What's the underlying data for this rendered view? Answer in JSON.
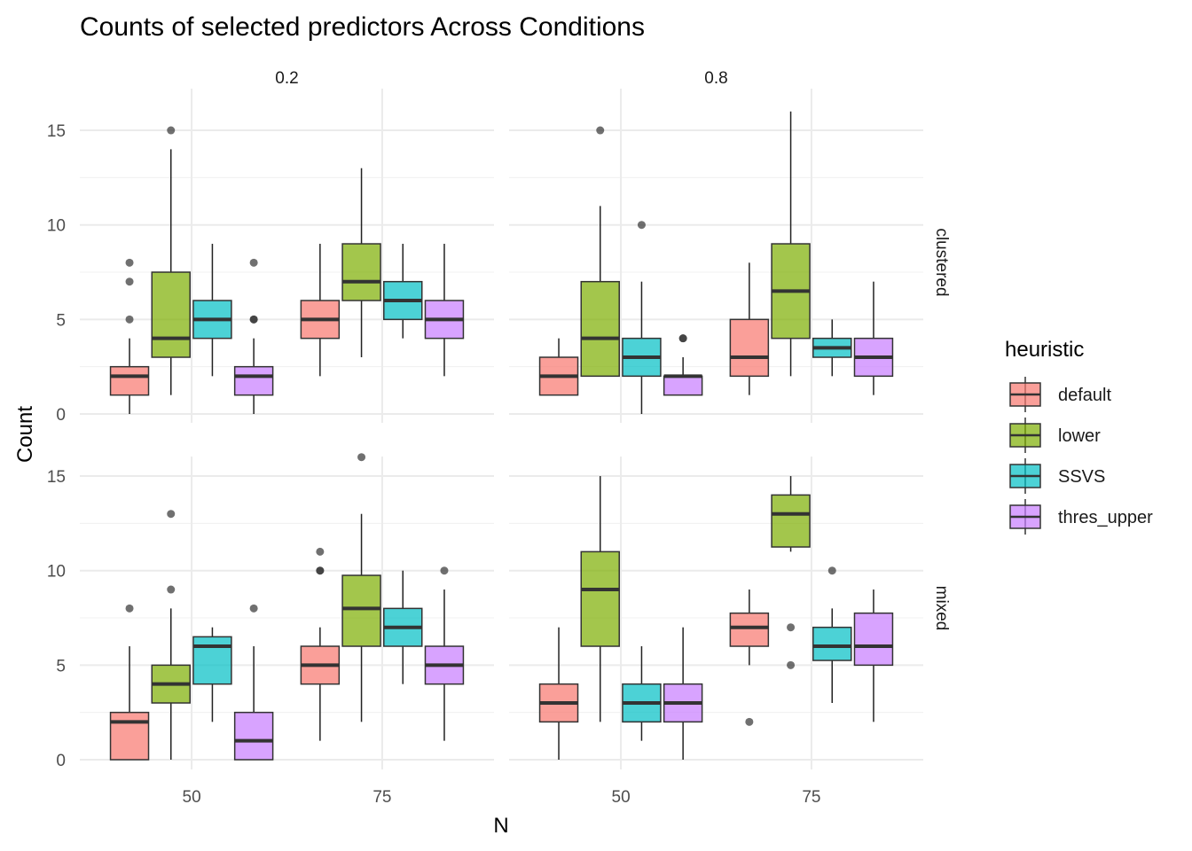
{
  "chart_data": {
    "type": "box",
    "title": "Counts of selected predictors Across Conditions",
    "xlabel": "N",
    "ylabel": "Count",
    "col_facets": [
      "0.2",
      "0.8"
    ],
    "row_facets": [
      "clustered",
      "mixed"
    ],
    "x_categories": [
      "50",
      "75"
    ],
    "y_ticks": [
      0,
      5,
      10,
      15
    ],
    "ylim": [
      -0.8,
      16.2
    ],
    "grid": true,
    "legend": {
      "title": "heuristic",
      "position": "right",
      "entries": [
        {
          "name": "default",
          "color": "#F8766D"
        },
        {
          "name": "lower",
          "color": "#7CAE00"
        },
        {
          "name": "SSVS",
          "color": "#00BFC4"
        },
        {
          "name": "thres_upper",
          "color": "#C77CFF"
        }
      ]
    },
    "panels": [
      {
        "col": "0.2",
        "row": "clustered",
        "boxes": [
          {
            "N": "50",
            "heuristic": "default",
            "lower_whisker": 0,
            "q1": 1,
            "median": 2,
            "q3": 2.5,
            "upper_whisker": 4,
            "outliers": [
              5,
              7,
              8
            ]
          },
          {
            "N": "50",
            "heuristic": "lower",
            "lower_whisker": 1,
            "q1": 3,
            "median": 4,
            "q3": 7.5,
            "upper_whisker": 14,
            "outliers": [
              15
            ]
          },
          {
            "N": "50",
            "heuristic": "SSVS",
            "lower_whisker": 2,
            "q1": 4,
            "median": 5,
            "q3": 6,
            "upper_whisker": 9,
            "outliers": []
          },
          {
            "N": "50",
            "heuristic": "thres_upper",
            "lower_whisker": 0,
            "q1": 1,
            "median": 2,
            "q3": 2.5,
            "upper_whisker": 4,
            "outliers": [
              5,
              5,
              8
            ]
          },
          {
            "N": "75",
            "heuristic": "default",
            "lower_whisker": 2,
            "q1": 4,
            "median": 5,
            "q3": 6,
            "upper_whisker": 9,
            "outliers": []
          },
          {
            "N": "75",
            "heuristic": "lower",
            "lower_whisker": 3,
            "q1": 6,
            "median": 7,
            "q3": 9,
            "upper_whisker": 13,
            "outliers": []
          },
          {
            "N": "75",
            "heuristic": "SSVS",
            "lower_whisker": 4,
            "q1": 5,
            "median": 6,
            "q3": 7,
            "upper_whisker": 9,
            "outliers": []
          },
          {
            "N": "75",
            "heuristic": "thres_upper",
            "lower_whisker": 2,
            "q1": 4,
            "median": 5,
            "q3": 6,
            "upper_whisker": 9,
            "outliers": []
          }
        ]
      },
      {
        "col": "0.8",
        "row": "clustered",
        "boxes": [
          {
            "N": "50",
            "heuristic": "default",
            "lower_whisker": 1,
            "q1": 1,
            "median": 2,
            "q3": 3,
            "upper_whisker": 4,
            "outliers": []
          },
          {
            "N": "50",
            "heuristic": "lower",
            "lower_whisker": 2,
            "q1": 2,
            "median": 4,
            "q3": 7,
            "upper_whisker": 11,
            "outliers": [
              15
            ]
          },
          {
            "N": "50",
            "heuristic": "SSVS",
            "lower_whisker": 0,
            "q1": 2,
            "median": 3,
            "q3": 4,
            "upper_whisker": 7,
            "outliers": [
              10
            ]
          },
          {
            "N": "50",
            "heuristic": "thres_upper",
            "lower_whisker": 1,
            "q1": 1,
            "median": 2,
            "q3": 2,
            "upper_whisker": 3,
            "outliers": [
              4,
              4
            ]
          },
          {
            "N": "75",
            "heuristic": "default",
            "lower_whisker": 1,
            "q1": 2,
            "median": 3,
            "q3": 5,
            "upper_whisker": 8,
            "outliers": []
          },
          {
            "N": "75",
            "heuristic": "lower",
            "lower_whisker": 2,
            "q1": 4,
            "median": 6.5,
            "q3": 9,
            "upper_whisker": 16,
            "outliers": []
          },
          {
            "N": "75",
            "heuristic": "SSVS",
            "lower_whisker": 2,
            "q1": 3,
            "median": 3.5,
            "q3": 4,
            "upper_whisker": 5,
            "outliers": []
          },
          {
            "N": "75",
            "heuristic": "thres_upper",
            "lower_whisker": 1,
            "q1": 2,
            "median": 3,
            "q3": 4,
            "upper_whisker": 7,
            "outliers": []
          }
        ]
      },
      {
        "col": "0.2",
        "row": "mixed",
        "boxes": [
          {
            "N": "50",
            "heuristic": "default",
            "lower_whisker": 0,
            "q1": 0,
            "median": 2,
            "q3": 2.5,
            "upper_whisker": 6,
            "outliers": [
              8
            ]
          },
          {
            "N": "50",
            "heuristic": "lower",
            "lower_whisker": 0,
            "q1": 3,
            "median": 4,
            "q3": 5,
            "upper_whisker": 8,
            "outliers": [
              9,
              13
            ]
          },
          {
            "N": "50",
            "heuristic": "SSVS",
            "lower_whisker": 2,
            "q1": 4,
            "median": 6,
            "q3": 6.5,
            "upper_whisker": 7,
            "outliers": []
          },
          {
            "N": "50",
            "heuristic": "thres_upper",
            "lower_whisker": 0,
            "q1": 0,
            "median": 1,
            "q3": 2.5,
            "upper_whisker": 6,
            "outliers": [
              8
            ]
          },
          {
            "N": "75",
            "heuristic": "default",
            "lower_whisker": 1,
            "q1": 4,
            "median": 5,
            "q3": 6,
            "upper_whisker": 7,
            "outliers": [
              10,
              10,
              11
            ]
          },
          {
            "N": "75",
            "heuristic": "lower",
            "lower_whisker": 2,
            "q1": 6,
            "median": 8,
            "q3": 9.75,
            "upper_whisker": 13,
            "outliers": [
              16
            ]
          },
          {
            "N": "75",
            "heuristic": "SSVS",
            "lower_whisker": 4,
            "q1": 6,
            "median": 7,
            "q3": 8,
            "upper_whisker": 10,
            "outliers": []
          },
          {
            "N": "75",
            "heuristic": "thres_upper",
            "lower_whisker": 1,
            "q1": 4,
            "median": 5,
            "q3": 6,
            "upper_whisker": 9,
            "outliers": [
              10
            ]
          }
        ]
      },
      {
        "col": "0.8",
        "row": "mixed",
        "boxes": [
          {
            "N": "50",
            "heuristic": "default",
            "lower_whisker": 0,
            "q1": 2,
            "median": 3,
            "q3": 4,
            "upper_whisker": 7,
            "outliers": []
          },
          {
            "N": "50",
            "heuristic": "lower",
            "lower_whisker": 2,
            "q1": 6,
            "median": 9,
            "q3": 11,
            "upper_whisker": 15,
            "outliers": []
          },
          {
            "N": "50",
            "heuristic": "SSVS",
            "lower_whisker": 1,
            "q1": 2,
            "median": 3,
            "q3": 4,
            "upper_whisker": 6,
            "outliers": []
          },
          {
            "N": "50",
            "heuristic": "thres_upper",
            "lower_whisker": 0,
            "q1": 2,
            "median": 3,
            "q3": 4,
            "upper_whisker": 7,
            "outliers": []
          },
          {
            "N": "75",
            "heuristic": "default",
            "lower_whisker": 5,
            "q1": 6,
            "median": 7,
            "q3": 7.75,
            "upper_whisker": 9,
            "outliers": [
              2
            ]
          },
          {
            "N": "75",
            "heuristic": "lower",
            "lower_whisker": 11,
            "q1": 11.25,
            "median": 13,
            "q3": 14,
            "upper_whisker": 15,
            "outliers": [
              5,
              7
            ]
          },
          {
            "N": "75",
            "heuristic": "SSVS",
            "lower_whisker": 3,
            "q1": 5.25,
            "median": 6,
            "q3": 7,
            "upper_whisker": 8,
            "outliers": [
              10
            ]
          },
          {
            "N": "75",
            "heuristic": "thres_upper",
            "lower_whisker": 2,
            "q1": 5,
            "median": 6,
            "q3": 7.75,
            "upper_whisker": 9,
            "outliers": []
          }
        ]
      }
    ]
  }
}
